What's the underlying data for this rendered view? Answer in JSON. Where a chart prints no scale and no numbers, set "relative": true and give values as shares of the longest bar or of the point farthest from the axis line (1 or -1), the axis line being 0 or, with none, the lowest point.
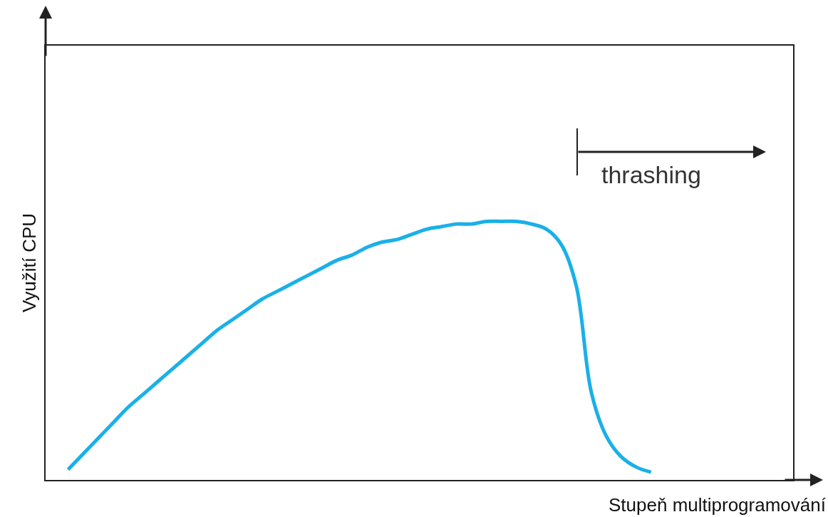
{
  "chart_data": {
    "type": "line",
    "relative": true,
    "xlabel": "Stupeň multiprogramování",
    "ylabel": "Využití CPU",
    "categories": [
      null,
      null,
      null,
      null,
      null,
      null,
      null,
      null,
      null,
      null,
      null,
      null,
      null,
      null,
      null,
      null,
      null,
      null,
      null,
      null,
      null,
      null,
      null,
      null,
      null,
      null,
      null,
      null,
      null,
      null,
      null,
      null,
      null,
      null,
      null,
      null,
      null,
      null,
      null,
      null,
      null,
      null,
      null,
      null,
      null,
      null,
      null,
      null,
      null,
      null
    ],
    "series": [
      {
        "color": "#1ab0e8",
        "values": [
          null,
          0.04,
          0.1,
          0.16,
          0.22,
          0.28,
          0.33,
          0.38,
          0.43,
          0.48,
          0.53,
          0.58,
          0.62,
          0.66,
          0.7,
          0.73,
          0.76,
          0.79,
          0.82,
          0.85,
          0.87,
          0.9,
          0.92,
          0.93,
          0.95,
          0.97,
          0.98,
          0.99,
          0.99,
          1.0,
          1.0,
          1.0,
          0.99,
          0.97,
          0.91,
          0.75,
          0.34,
          0.17,
          0.09,
          0.05,
          0.03,
          null,
          null,
          null,
          null,
          null,
          null,
          null,
          null,
          null
        ]
      }
    ],
    "annotations": [
      "thrashing"
    ],
    "marker": "none",
    "line_style": "solid"
  }
}
